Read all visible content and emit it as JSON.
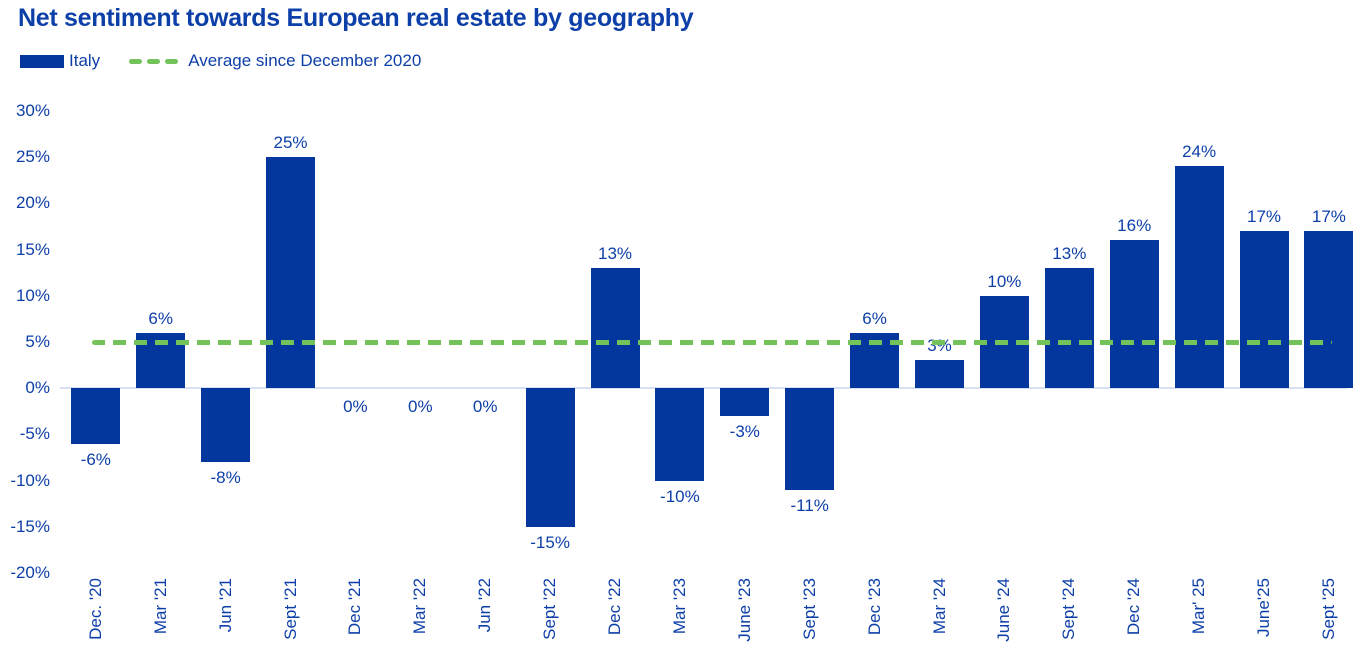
{
  "chart_data": {
    "type": "bar",
    "title": "Net sentiment towards European real estate by geography",
    "categories": [
      "Dec. '20",
      "Mar '21",
      "Jun '21",
      "Sept '21",
      "Dec '21",
      "Mar '22",
      "Jun '22",
      "Sept '22",
      "Dec '22",
      "Mar '23",
      "June '23",
      "Sept '23",
      "Dec '23",
      "Mar '24",
      "June '24",
      "Sept '24",
      "Dec '24",
      "Mar' 25",
      "June'25",
      "Sept '25"
    ],
    "values": [
      -6,
      6,
      -8,
      25,
      0,
      0,
      0,
      -15,
      13,
      -10,
      -3,
      -11,
      6,
      3,
      10,
      13,
      16,
      24,
      17,
      17
    ],
    "data_labels": [
      "-6%",
      "6%",
      "-8%",
      "25%",
      "0%",
      "0%",
      "0%",
      "-15%",
      "13%",
      "-10%",
      "-3%",
      "-11%",
      "6%",
      "3%",
      "10%",
      "13%",
      "16%",
      "24%",
      "17%",
      "17%"
    ],
    "y_ticks": [
      "30%",
      "25%",
      "20%",
      "15%",
      "10%",
      "5%",
      "0%",
      "-5%",
      "-10%",
      "-15%",
      "-20%"
    ],
    "ylim": [
      -20,
      30
    ],
    "ytick_step": 5,
    "average_line_value": 5,
    "legend": {
      "series_label": "Italy",
      "average_label": "Average since December 2020"
    },
    "legend_position": "top-left",
    "grid": "off",
    "colors": {
      "bar": "#04379E",
      "text": "#0D3FA8",
      "average_line": "#74C25A",
      "zero_axis": "#D8E1F3",
      "background": "#FFFFFF"
    }
  }
}
